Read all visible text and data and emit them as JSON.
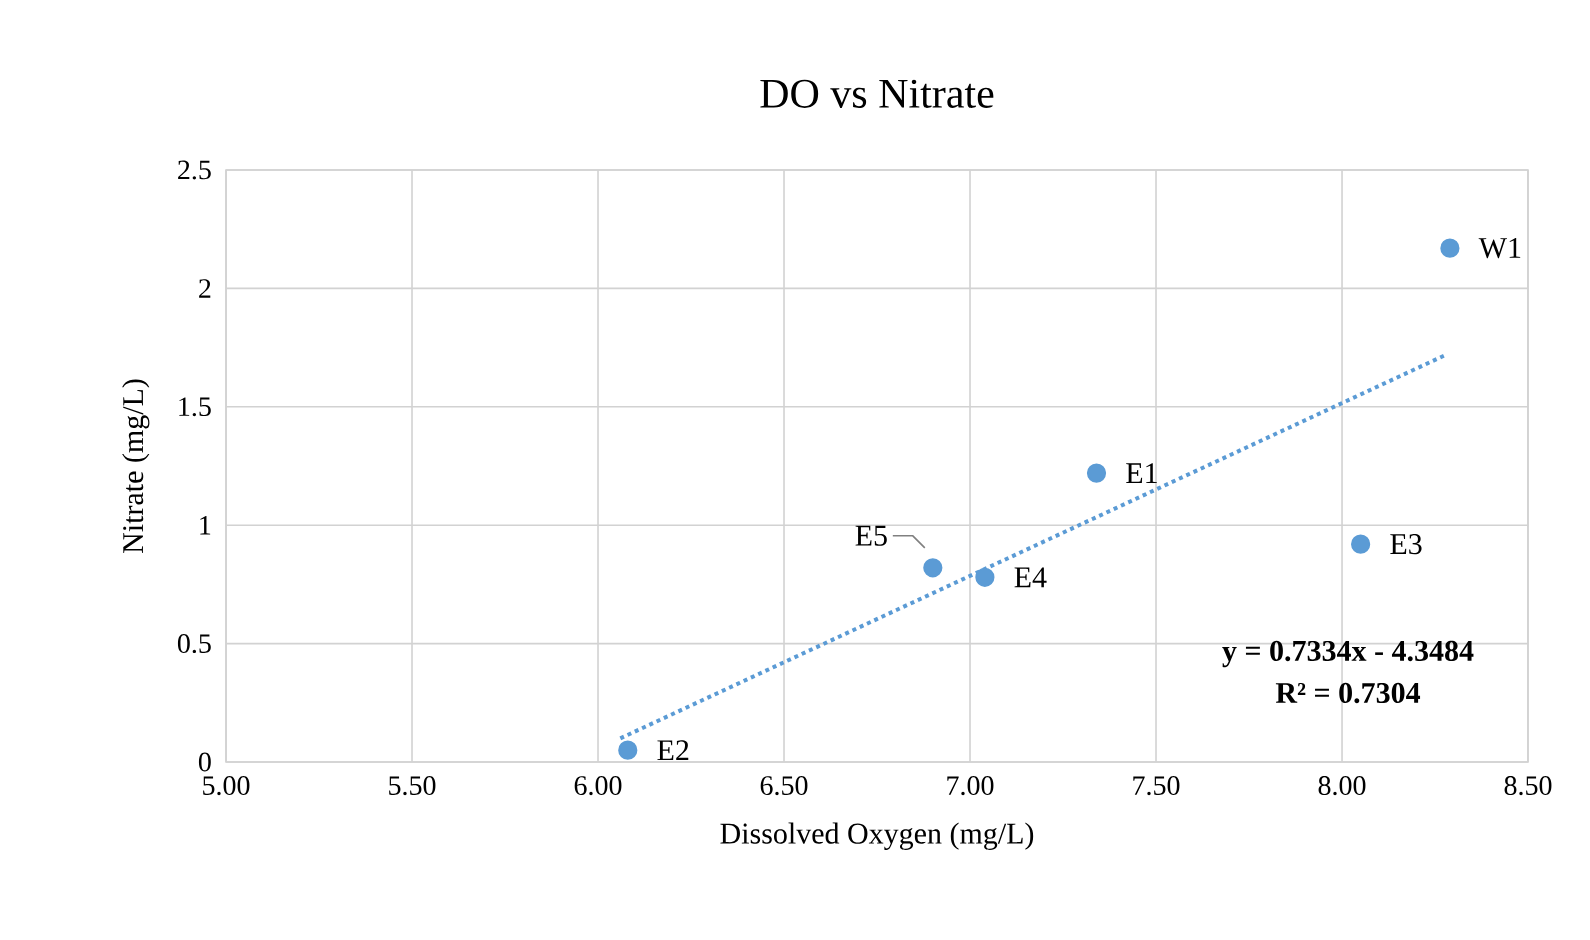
{
  "chart_data": {
    "type": "scatter",
    "title": "DO vs Nitrate",
    "xlabel": "Dissolved Oxygen (mg/L)",
    "ylabel": "Nitrate (mg/L)",
    "xlim": [
      5,
      8.5
    ],
    "xticks": [
      {
        "value": 5,
        "label": "5.00"
      },
      {
        "value": 5.5,
        "label": "5.50"
      },
      {
        "value": 6,
        "label": "6.00"
      },
      {
        "value": 6.5,
        "label": "6.50"
      },
      {
        "value": 7,
        "label": "7.00"
      },
      {
        "value": 7.5,
        "label": "7.50"
      },
      {
        "value": 8,
        "label": "8.00"
      },
      {
        "value": 8.5,
        "label": "8.50"
      }
    ],
    "ylim": [
      0,
      2.5
    ],
    "yticks": [
      0,
      0.5,
      1,
      1.5,
      2,
      2.5
    ],
    "grid": true,
    "series": [
      {
        "color": "#5b9bd5",
        "marker": "circle",
        "x": [
          8.29,
          7.34,
          8.05,
          6.9,
          7.04,
          6.08
        ],
        "values": [
          2.17,
          1.22,
          0.92,
          0.82,
          0.78,
          0.05
        ]
      },
      {
        "type": "line",
        "color": "#5b9bd5",
        "marker": "none",
        "line_style": "dotted",
        "x": [
          6.06,
          8.28
        ],
        "values": [
          0.1,
          1.72
        ]
      }
    ],
    "annotations": [
      {
        "text": "W1",
        "x": 8.29,
        "y": 2.17
      },
      {
        "text": "E1",
        "x": 7.34,
        "y": 1.22
      },
      {
        "text": "E3",
        "x": 8.05,
        "y": 0.92
      },
      {
        "text": "E5",
        "x": 6.9,
        "y": 0.82
      },
      {
        "text": "E4",
        "x": 7.04,
        "y": 0.78
      },
      {
        "text": "E2",
        "x": 6.08,
        "y": 0.05
      },
      "y = 0.7334x - 4.3484",
      "R² = 0.7304"
    ]
  }
}
